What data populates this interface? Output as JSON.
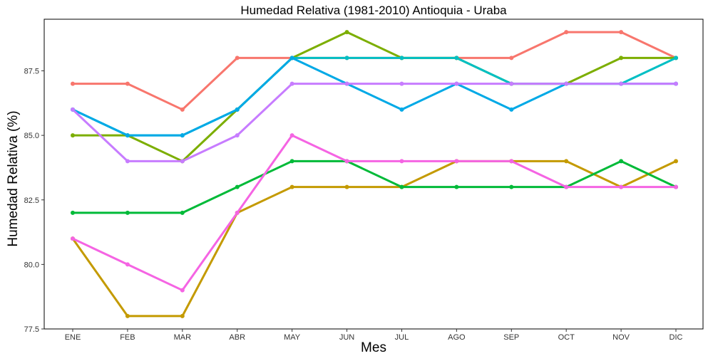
{
  "chart_data": {
    "type": "line",
    "title": "Humedad Relativa (1981-2010)  Antioquia - Uraba",
    "xlabel": "Mes",
    "ylabel": "Humedad Relativa  (%)",
    "categories": [
      "ENE",
      "FEB",
      "MAR",
      "ABR",
      "MAY",
      "JUN",
      "JUL",
      "AGO",
      "SEP",
      "OCT",
      "NOV",
      "DIC"
    ],
    "ylim": [
      77.5,
      89.5
    ],
    "yticks": [
      "77.5",
      "80.0",
      "82.5",
      "85.0",
      "87.5"
    ],
    "ytick_values": [
      77.5,
      80.0,
      82.5,
      85.0,
      87.5
    ],
    "grid": false,
    "legend": "none",
    "series": [
      {
        "color": "#F8766D",
        "values": [
          87,
          87,
          86,
          88,
          88,
          88,
          88,
          88,
          88,
          89,
          89,
          88
        ]
      },
      {
        "color": "#C49A00",
        "values": [
          81,
          78,
          78,
          82,
          83,
          83,
          83,
          84,
          84,
          84,
          83,
          84
        ]
      },
      {
        "color": "#7CAE00",
        "values": [
          85,
          85,
          84,
          86,
          88,
          89,
          88,
          88,
          87,
          87,
          88,
          88
        ]
      },
      {
        "color": "#00BA38",
        "values": [
          82,
          82,
          82,
          83,
          84,
          84,
          83,
          83,
          83,
          83,
          84,
          83
        ]
      },
      {
        "color": "#00BFC4",
        "values": [
          86,
          85,
          85,
          86,
          88,
          88,
          88,
          88,
          87,
          87,
          87,
          88
        ]
      },
      {
        "color": "#00A9E6",
        "values": [
          86,
          85,
          85,
          86,
          88,
          87,
          86,
          87,
          86,
          87,
          87,
          87
        ]
      },
      {
        "color": "#C77CFF",
        "values": [
          86,
          84,
          84,
          85,
          87,
          87,
          87,
          87,
          87,
          87,
          87,
          87
        ]
      },
      {
        "color": "#F564E3",
        "values": [
          81,
          80,
          79,
          82,
          85,
          84,
          84,
          84,
          84,
          83,
          83,
          83
        ]
      }
    ]
  }
}
